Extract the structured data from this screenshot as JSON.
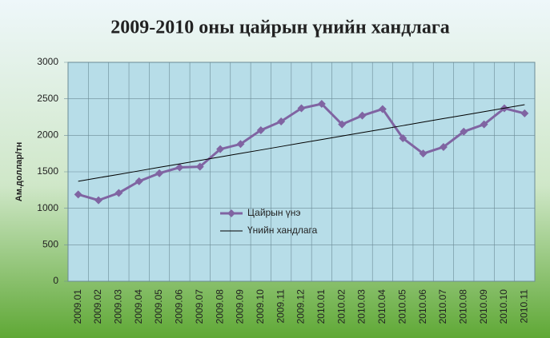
{
  "chart_data": {
    "type": "line",
    "title": "2009-2010 оны цайрын үнийн хандлага",
    "y_label": "Ам.доллар/тн",
    "categories": [
      "2009.01",
      "2009.02",
      "2009.03",
      "2009.04",
      "2009.05",
      "2009.06",
      "2009.07",
      "2009.08",
      "2009.09",
      "2009.10",
      "2009.11",
      "2009.12",
      "2010.01",
      "2010.02",
      "2010.03",
      "2010.04",
      "2010.05",
      "2010.06",
      "2010.07",
      "2010.08",
      "2010.09",
      "2010.10",
      "2010.11"
    ],
    "series": [
      {
        "name": "Цайрын үнэ",
        "color": "#8064a2",
        "values": [
          1190,
          1110,
          1210,
          1370,
          1480,
          1560,
          1570,
          1810,
          1880,
          2070,
          2190,
          2370,
          2430,
          2150,
          2270,
          2360,
          1960,
          1750,
          1840,
          2050,
          2150,
          2370,
          2300
        ]
      },
      {
        "name": "Үнийн хандлага",
        "color": "#000000",
        "values": [
          1370,
          1418,
          1465,
          1513,
          1561,
          1608,
          1656,
          1704,
          1752,
          1799,
          1847,
          1895,
          1942,
          1990,
          2038,
          2085,
          2133,
          2181,
          2229,
          2276,
          2324,
          2372,
          2420
        ]
      }
    ],
    "ylim": [
      0,
      3000
    ],
    "yticks": [
      0,
      500,
      1000,
      1500,
      2000,
      2500,
      3000
    ],
    "grid": true,
    "legend": "center"
  }
}
